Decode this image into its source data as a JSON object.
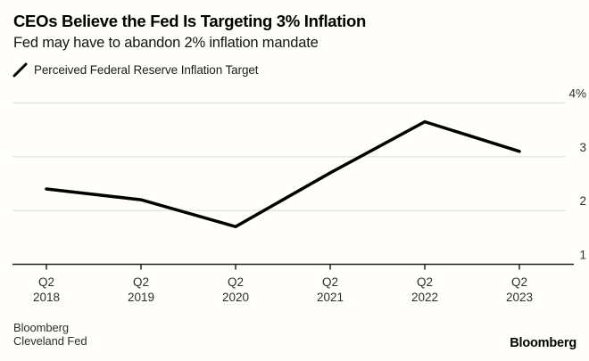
{
  "header": {
    "title": "CEOs Believe the Fed Is Targeting 3% Inflation",
    "subtitle": "Fed may have to abandon 2% inflation mandate"
  },
  "legend": {
    "label": "Perceived Federal Reserve Inflation Target",
    "mark": "diagonal-line"
  },
  "chart_data": {
    "type": "line",
    "title": "CEOs Believe the Fed Is Targeting 3% Inflation",
    "subtitle": "Fed may have to abandon 2% inflation mandate",
    "categories": [
      "Q2 2018",
      "Q2 2019",
      "Q2 2020",
      "Q2 2021",
      "Q2 2022",
      "Q2 2023"
    ],
    "series": [
      {
        "name": "Perceived Federal Reserve Inflation Target",
        "values": [
          2.4,
          2.2,
          1.7,
          2.7,
          3.65,
          3.1
        ]
      }
    ],
    "ylim": [
      1,
      4
    ],
    "yticks": [
      1,
      2,
      3,
      4
    ],
    "ytick_labels": [
      "1",
      "2",
      "3",
      "4%"
    ],
    "ylabel_side": "right",
    "grid": true,
    "legend_position": "top-left",
    "line_color": "#000000"
  },
  "source": {
    "line1": "Bloomberg",
    "line2": "Cleveland Fed"
  },
  "footer": {
    "logo": "Bloomberg"
  },
  "colors": {
    "background": "#fffefa",
    "line": "#000000",
    "grid": "#dedede",
    "axis": "#222222",
    "tick_text": "#2d2d2d"
  }
}
